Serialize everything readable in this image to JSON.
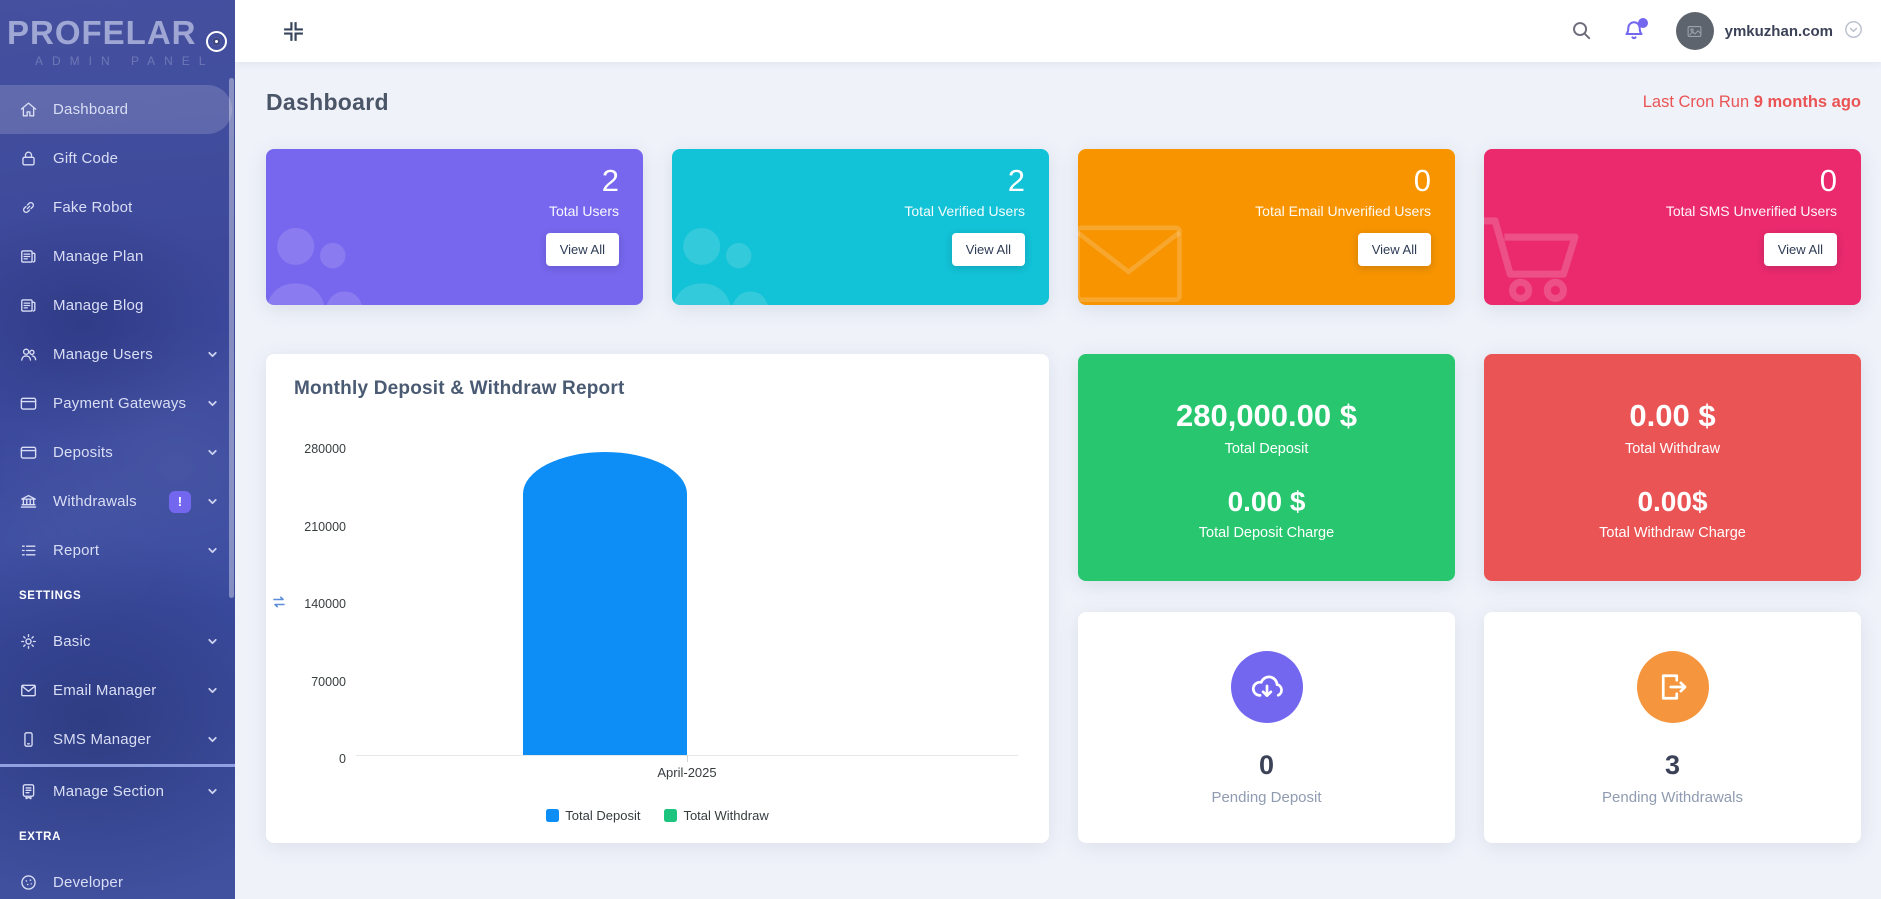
{
  "sidebar": {
    "logo_title": "PROFELAR",
    "logo_subtitle": "ADMIN PANEL",
    "section_settings": "SETTINGS",
    "section_extra": "EXTRA",
    "withdrawals_badge": "!",
    "items": [
      {
        "label": "Dashboard",
        "icon": "home",
        "active": true
      },
      {
        "label": "Gift Code",
        "icon": "lock"
      },
      {
        "label": "Fake Robot",
        "icon": "link"
      },
      {
        "label": "Manage Plan",
        "icon": "newspaper"
      },
      {
        "label": "Manage Blog",
        "icon": "newspaper"
      },
      {
        "label": "Manage Users",
        "icon": "users",
        "expandable": true
      },
      {
        "label": "Payment Gateways",
        "icon": "credit-card",
        "expandable": true
      },
      {
        "label": "Deposits",
        "icon": "credit-card",
        "expandable": true
      },
      {
        "label": "Withdrawals",
        "icon": "bank",
        "expandable": true,
        "badge": "!"
      },
      {
        "label": "Report",
        "icon": "list",
        "expandable": true
      },
      {
        "label": "Basic",
        "icon": "gear",
        "expandable": true
      },
      {
        "label": "Email Manager",
        "icon": "mail",
        "expandable": true
      },
      {
        "label": "SMS Manager",
        "icon": "mobile",
        "expandable": true
      },
      {
        "label": "Manage Section",
        "icon": "license",
        "expandable": true
      },
      {
        "label": "Developer",
        "icon": "cookie"
      }
    ]
  },
  "topbar": {
    "user_name": "ymkuzhan.com"
  },
  "page": {
    "title": "Dashboard",
    "cron_label": "Last Cron Run",
    "cron_value": "9 months ago",
    "cron_color": "#ea5455"
  },
  "stat_cards": [
    {
      "value": "2",
      "label": "Total Users",
      "button": "View All",
      "color": "#7767ee",
      "icon": "users"
    },
    {
      "value": "2",
      "label": "Total Verified Users",
      "button": "View All",
      "color": "#12c2d6",
      "icon": "users"
    },
    {
      "value": "0",
      "label": "Total Email Unverified Users",
      "button": "View All",
      "color": "#f79400",
      "icon": "mail"
    },
    {
      "value": "0",
      "label": "Total SMS Unverified Users",
      "button": "View All",
      "color": "#ea2a6c",
      "icon": "cart"
    }
  ],
  "chart_data": {
    "type": "bar",
    "title": "Monthly Deposit & Withdraw Report",
    "categories": [
      "April-2025"
    ],
    "series": [
      {
        "name": "Total Deposit",
        "values": [
          280000
        ],
        "color": "#0d8ef7"
      },
      {
        "name": "Total Withdraw",
        "values": [
          0
        ],
        "color": "#1dc47e"
      }
    ],
    "ylim": [
      0,
      280000
    ],
    "yticks": [
      "280000",
      "210000",
      "140000",
      "70000",
      "0"
    ],
    "xlabel": "",
    "ylabel": "",
    "grid": false,
    "legend_position": "bottom"
  },
  "summary_cards": [
    {
      "value": "280,000.00 $",
      "label": "Total Deposit",
      "value2": "0.00 $",
      "label2": "Total Deposit Charge",
      "color": "#28c76f"
    },
    {
      "value": "0.00 $",
      "label": "Total Withdraw",
      "value2": "0.00$",
      "label2": "Total Withdraw Charge",
      "color": "#ea5455"
    }
  ],
  "pending_cards": [
    {
      "value": "0",
      "label": "Pending Deposit",
      "icon": "cloud-download",
      "color": "#7367f0"
    },
    {
      "value": "3",
      "label": "Pending Withdrawals",
      "icon": "sign-out",
      "color": "#f5953d"
    }
  ]
}
